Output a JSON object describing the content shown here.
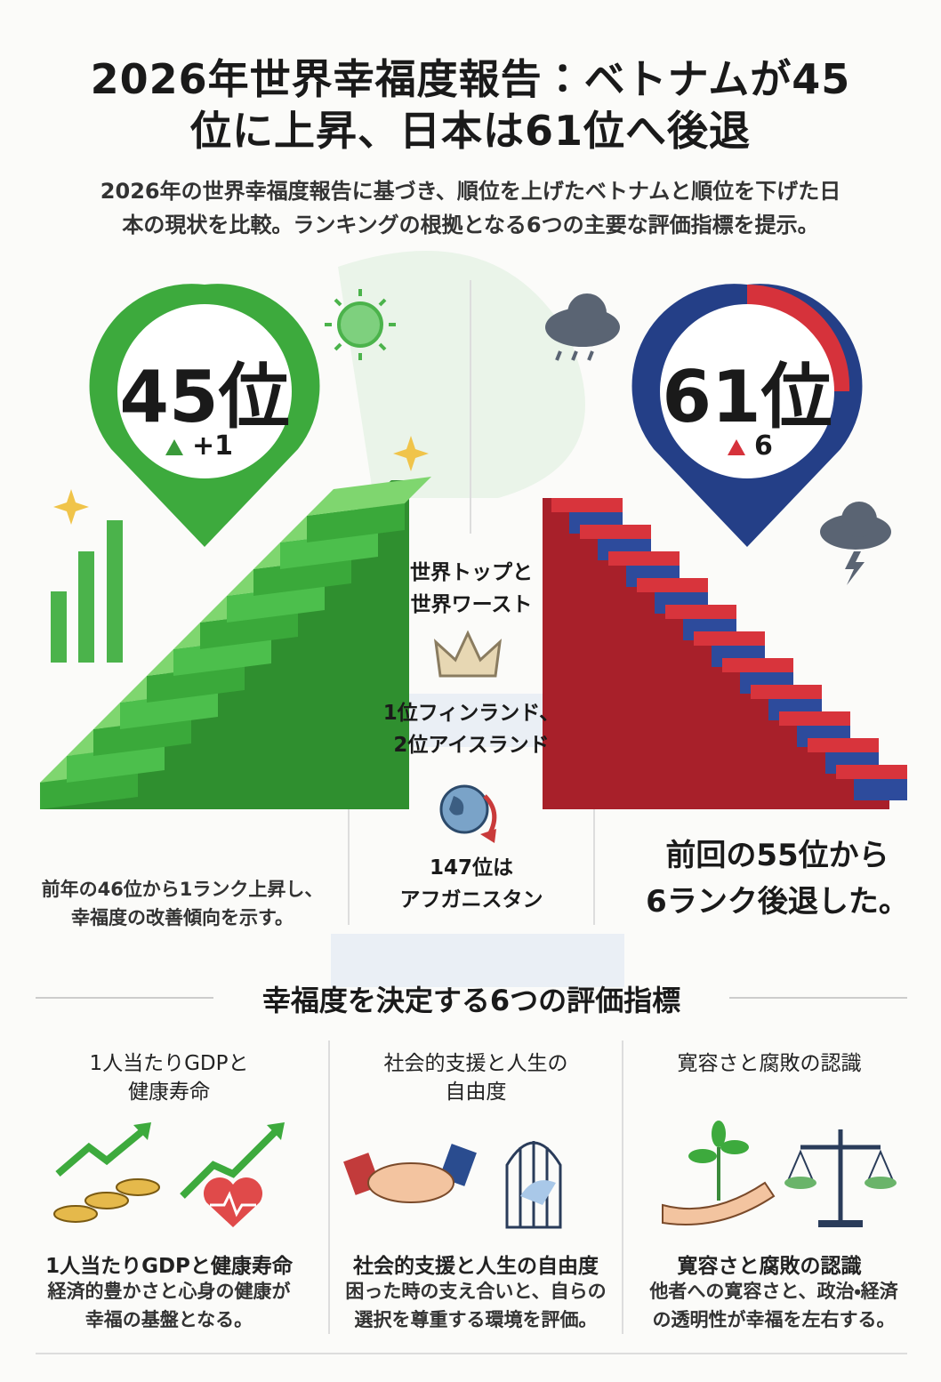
{
  "header": {
    "title_lines": [
      "2026年世界幸福度報告：ベトナムが45",
      "位に上昇、日本は61位へ後退"
    ],
    "subtitle_lines": [
      "2026年の世界幸福度報告に基づき、順位を上げたベトナムと順位を下げた日",
      "本の現状を比較。ランキングの根拠となる6つの主要な評価指標を提示。"
    ]
  },
  "vietnam": {
    "rank": "45位",
    "change": "+1",
    "note_lines": [
      "前年の46位から1ランク上昇し、",
      "幸福度の改善傾向を示す。"
    ]
  },
  "japan": {
    "rank": "61位",
    "change": "6",
    "note_lines": [
      "前回の55位から",
      "6ランク後退した。"
    ]
  },
  "world": {
    "heading_lines": [
      "世界トップと",
      "世界ワースト"
    ],
    "top_lines": [
      "1位フィンランド、",
      "2位アイスランド"
    ],
    "bottom_lines": [
      "147位は",
      "アフガニスタン"
    ]
  },
  "indicators": {
    "title": "幸福度を決定する6つの評価指標",
    "items": [
      {
        "header_lines": [
          "1人当たりGDPと",
          "健康寿命"
        ],
        "title": "1人当たりGDPと健康寿命",
        "description_lines": [
          "経済的豊かさと心身の健康が",
          "幸福の基盤となる。"
        ]
      },
      {
        "header_lines": [
          "社会的支援と人生の",
          "自由度"
        ],
        "title": "社会的支援と人生の自由度",
        "description_lines": [
          "困った時の支え合いと、自らの",
          "選択を尊重する環境を評価。"
        ]
      },
      {
        "header_lines": [
          "寛容さと腐敗の認識"
        ],
        "title": "寛容さと腐敗の認識",
        "description_lines": [
          "他者への寛容さと、政治・経済",
          "の透明性が幸福を左右する。"
        ]
      }
    ]
  }
}
